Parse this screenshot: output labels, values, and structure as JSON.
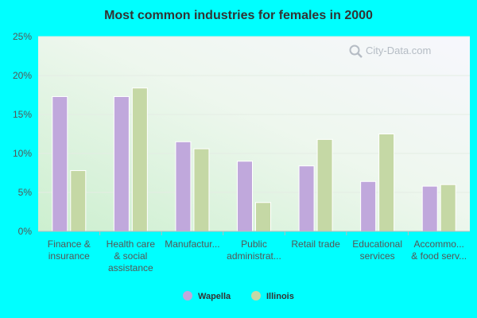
{
  "chart_data": {
    "type": "bar",
    "title": "Most common industries for females in 2000",
    "categories": [
      [
        "Finance &",
        "insurance"
      ],
      [
        "Health care",
        "& social",
        "assistance"
      ],
      [
        "Manufactur..."
      ],
      [
        "Public",
        "administrat..."
      ],
      [
        "Retail trade"
      ],
      [
        "Educational",
        "services"
      ],
      [
        "Accommo...",
        "& food serv..."
      ]
    ],
    "series": [
      {
        "name": "Wapella",
        "color": "#c0a8dc",
        "values": [
          17.3,
          17.3,
          11.5,
          9.0,
          8.4,
          6.4,
          5.8
        ]
      },
      {
        "name": "Illinois",
        "color": "#c5d8a5",
        "values": [
          7.8,
          18.4,
          10.6,
          3.7,
          11.8,
          12.5,
          6.0
        ]
      }
    ],
    "y_ticks": [
      "0%",
      "5%",
      "10%",
      "15%",
      "20%",
      "25%"
    ],
    "ylim": [
      0,
      25
    ],
    "grid": true,
    "legend_position": "bottom"
  },
  "watermark": {
    "text": "City-Data.com",
    "icon": "search-icon"
  }
}
